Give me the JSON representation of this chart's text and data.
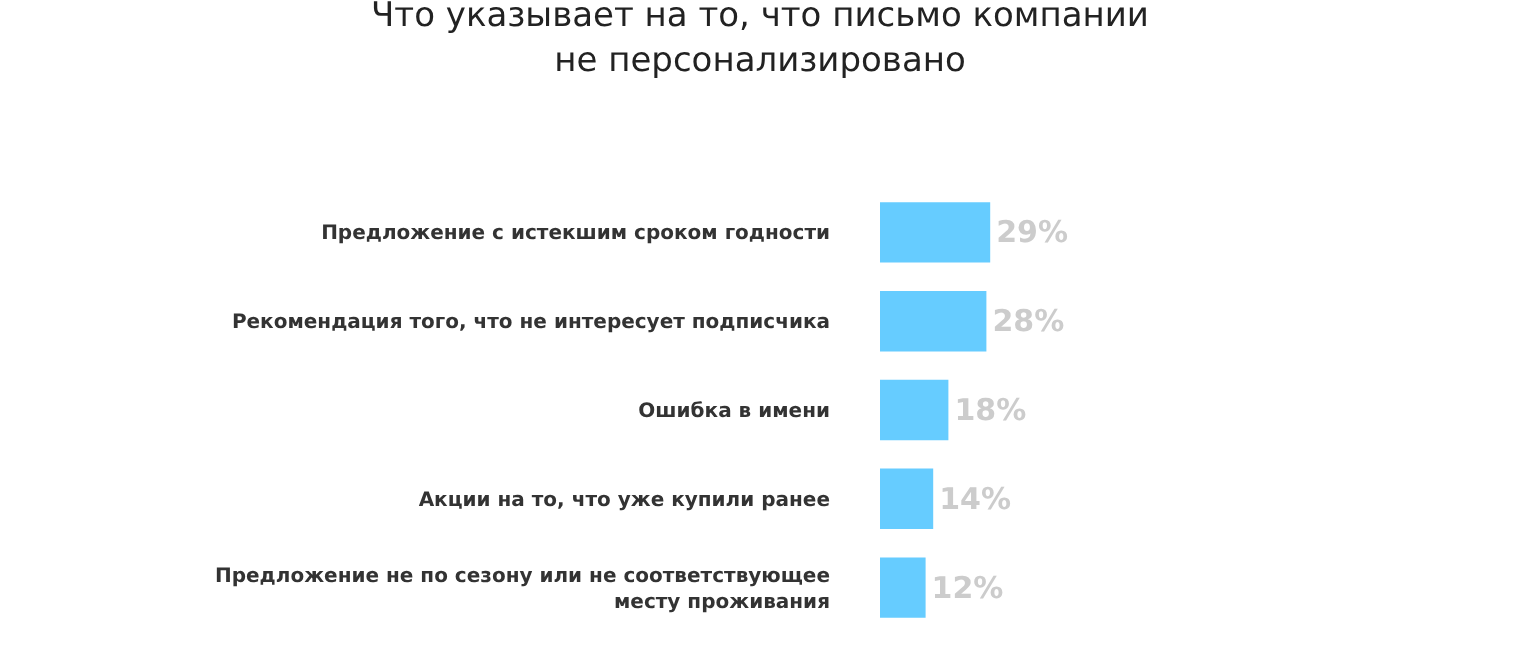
{
  "chart_data": {
    "type": "bar",
    "orientation": "horizontal",
    "title": "Что указывает на то, что письмо компании\nне персонализировано",
    "categories": [
      "Предложение с истекшим сроком годности",
      "Рекомендация того, что не интересует подписчика",
      "Ошибка в имени",
      "Акции на то, что уже купили ранее",
      "Предложение не по сезону или не соответствующее\nместу проживания"
    ],
    "values": [
      29,
      28,
      18,
      14,
      12
    ],
    "value_labels": [
      "29%",
      "28%",
      "18%",
      "14%",
      "12%"
    ],
    "color": "#66ccff",
    "grid": false,
    "legend": false
  }
}
